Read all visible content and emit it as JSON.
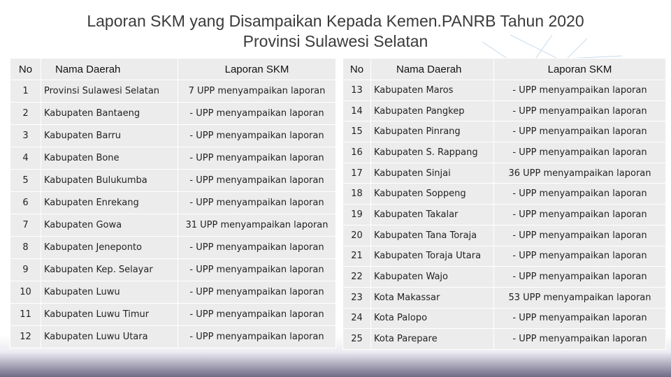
{
  "title": {
    "line1": "Laporan SKM yang Disampaikan Kepada Kemen.PANRB Tahun 2020",
    "line2": "Provinsi Sulawesi Selatan"
  },
  "headers": {
    "no": "No",
    "nama": "Nama Daerah",
    "laporan": "Laporan SKM"
  },
  "left_rows": [
    {
      "no": "1",
      "nama": "Provinsi Sulawesi Selatan",
      "laporan": "7 UPP menyampaikan laporan"
    },
    {
      "no": "2",
      "nama": "Kabupaten Bantaeng",
      "laporan": "- UPP menyampaikan laporan"
    },
    {
      "no": "3",
      "nama": "Kabupaten Barru",
      "laporan": "- UPP menyampaikan laporan"
    },
    {
      "no": "4",
      "nama": "Kabupaten Bone",
      "laporan": "- UPP menyampaikan laporan"
    },
    {
      "no": "5",
      "nama": "Kabupaten Bulukumba",
      "laporan": "- UPP menyampaikan laporan"
    },
    {
      "no": "6",
      "nama": "Kabupaten Enrekang",
      "laporan": "- UPP menyampaikan laporan"
    },
    {
      "no": "7",
      "nama": "Kabupaten Gowa",
      "laporan": "31 UPP menyampaikan laporan"
    },
    {
      "no": "8",
      "nama": "Kabupaten Jeneponto",
      "laporan": "- UPP menyampaikan laporan"
    },
    {
      "no": "9",
      "nama": "Kabupaten Kep. Selayar",
      "laporan": "- UPP menyampaikan laporan"
    },
    {
      "no": "10",
      "nama": "Kabupaten Luwu",
      "laporan": "- UPP menyampaikan laporan"
    },
    {
      "no": "11",
      "nama": "Kabupaten Luwu Timur",
      "laporan": "- UPP menyampaikan laporan"
    },
    {
      "no": "12",
      "nama": "Kabupaten Luwu Utara",
      "laporan": "- UPP menyampaikan laporan"
    }
  ],
  "right_rows": [
    {
      "no": "13",
      "nama": "Kabupaten Maros",
      "laporan": "- UPP menyampaikan laporan"
    },
    {
      "no": "14",
      "nama": "Kabupaten Pangkep",
      "laporan": "- UPP menyampaikan laporan"
    },
    {
      "no": "15",
      "nama": "Kabupaten Pinrang",
      "laporan": "- UPP menyampaikan laporan"
    },
    {
      "no": "16",
      "nama": "Kabupaten S. Rappang",
      "laporan": "- UPP menyampaikan laporan"
    },
    {
      "no": "17",
      "nama": "Kabupaten Sinjai",
      "laporan": "36 UPP menyampaikan laporan"
    },
    {
      "no": "18",
      "nama": "Kabupaten Soppeng",
      "laporan": "- UPP menyampaikan laporan"
    },
    {
      "no": "19",
      "nama": "Kabupaten Takalar",
      "laporan": "- UPP menyampaikan laporan"
    },
    {
      "no": "20",
      "nama": "Kabupaten Tana Toraja",
      "laporan": "- UPP menyampaikan laporan"
    },
    {
      "no": "21",
      "nama": "Kabupaten Toraja Utara",
      "laporan": "- UPP menyampaikan laporan"
    },
    {
      "no": "22",
      "nama": "Kabupaten Wajo",
      "laporan": "- UPP menyampaikan laporan"
    },
    {
      "no": "23",
      "nama": "Kota Makassar",
      "laporan": "53 UPP menyampaikan laporan"
    },
    {
      "no": "24",
      "nama": "Kota Palopo",
      "laporan": "- UPP menyampaikan laporan"
    },
    {
      "no": "25",
      "nama": "Kota Parepare",
      "laporan": "- UPP menyampaikan laporan"
    }
  ]
}
